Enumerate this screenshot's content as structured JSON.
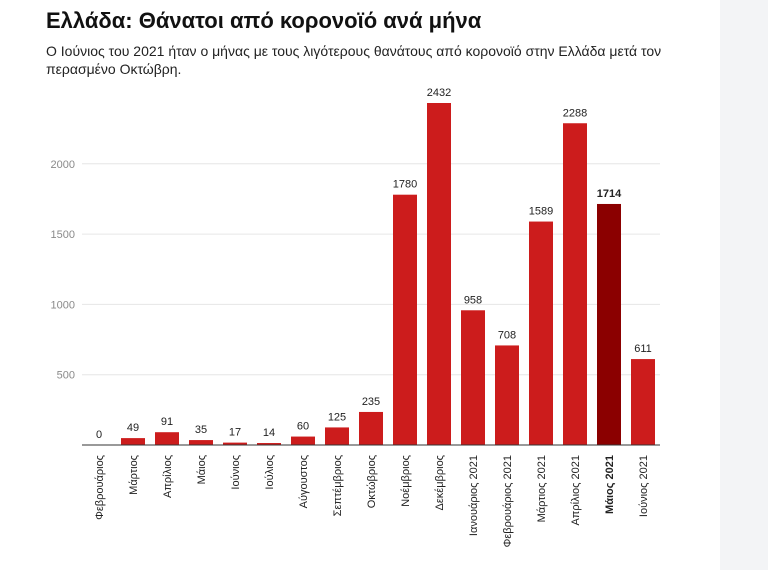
{
  "title": "Ελλάδα: Θάνατοι από κορονοϊό ανά μήνα",
  "subtitle": "Ο Ιούνιος του 2021 ήταν ο μήνας με τους λιγότερους θανάτους από κορονοϊό στην Ελλάδα μετά τον περασμένο Οκτώβρη.",
  "colors": {
    "bar": "#cc1c1c",
    "highlight": "#8b0000",
    "grid": "#e6e6e6",
    "axis": "#333333"
  },
  "chart_data": {
    "type": "bar",
    "title": "Ελλάδα: Θάνατοι από κορονοϊό ανά μήνα",
    "xlabel": "",
    "ylabel": "",
    "ylim": [
      0,
      2432
    ],
    "yticks": [
      500,
      1000,
      1500,
      2000
    ],
    "grid": true,
    "categories": [
      "Φεβρουάριος",
      "Μάρτιος",
      "Απρίλιος",
      "Μάιος",
      "Ιούνιος",
      "Ιούλιος",
      "Αύγουστος",
      "Σεπτέμβριος",
      "Οκτώβριος",
      "Νοέμβριος",
      "Δεκέμβριος",
      "Ιανουάριος 2021",
      "Φεβρουάριος 2021",
      "Μάρτιος 2021",
      "Απρίλιος 2021",
      "Μάιος 2021",
      "Ιούνιος 2021"
    ],
    "values": [
      0,
      49,
      91,
      35,
      17,
      14,
      60,
      125,
      235,
      1780,
      2432,
      958,
      708,
      1589,
      2288,
      1714,
      611
    ],
    "highlight_category": "Μάιος 2021"
  }
}
